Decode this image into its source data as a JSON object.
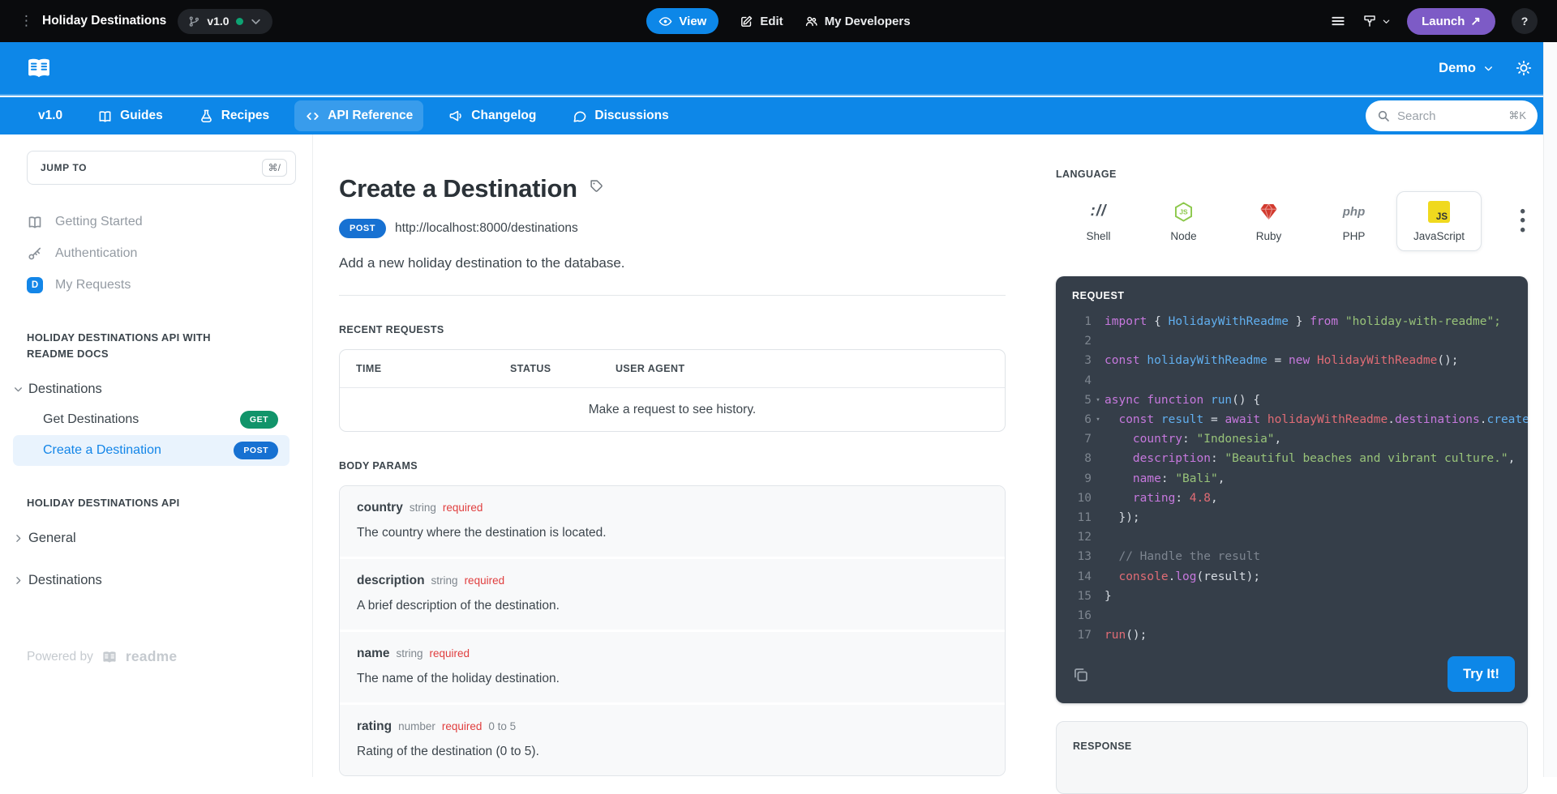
{
  "topbar": {
    "project": "Holiday Destinations",
    "version": "v1.0",
    "view": "View",
    "edit": "Edit",
    "my_developers": "My Developers",
    "launch": "Launch",
    "launch_arrow": "↗",
    "help": "?"
  },
  "header": {
    "project_selector": "Demo"
  },
  "nav": {
    "version": "v1.0",
    "items": [
      {
        "icon": "book-icon",
        "label": "Guides",
        "active": false
      },
      {
        "icon": "flask-icon",
        "label": "Recipes",
        "active": false
      },
      {
        "icon": "code-icon",
        "label": "API Reference",
        "active": true
      },
      {
        "icon": "megaphone-icon",
        "label": "Changelog",
        "active": false
      },
      {
        "icon": "chat-icon",
        "label": "Discussions",
        "active": false
      }
    ],
    "search": {
      "placeholder": "Search",
      "shortcut": "⌘K"
    }
  },
  "sidebar": {
    "jump_to_label": "JUMP TO",
    "jump_to_shortcut": "⌘/",
    "links": [
      {
        "icon": "book-icon",
        "label": "Getting Started"
      },
      {
        "icon": "key-icon",
        "label": "Authentication"
      },
      {
        "icon": "d-badge",
        "badge": "D",
        "label": "My Requests"
      }
    ],
    "sections": [
      {
        "title": "HOLIDAY DESTINATIONS API WITH README DOCS",
        "groups": [
          {
            "label": "Destinations",
            "expanded": true,
            "children": [
              {
                "label": "Get Destinations",
                "method": "GET",
                "active": false
              },
              {
                "label": "Create a Destination",
                "method": "POST",
                "active": true
              }
            ]
          }
        ]
      },
      {
        "title": "HOLIDAY DESTINATIONS API",
        "groups": [
          {
            "label": "General",
            "expanded": false,
            "children": []
          },
          {
            "label": "Destinations",
            "expanded": false,
            "children": []
          }
        ]
      }
    ],
    "powered_by": "Powered by",
    "powered_brand": "readme"
  },
  "main": {
    "title": "Create a Destination",
    "method": "POST",
    "url": "http://localhost:8000/destinations",
    "description": "Add a new holiday destination to the database.",
    "recent_requests": {
      "heading": "RECENT REQUESTS",
      "columns": [
        "TIME",
        "STATUS",
        "USER AGENT"
      ],
      "empty": "Make a request to see history."
    },
    "body_params_heading": "BODY PARAMS",
    "params": [
      {
        "name": "country",
        "type": "string",
        "flag": "required",
        "range": "",
        "desc": "The country where the destination is located."
      },
      {
        "name": "description",
        "type": "string",
        "flag": "required",
        "range": "",
        "desc": "A brief description of the destination."
      },
      {
        "name": "name",
        "type": "string",
        "flag": "required",
        "range": "",
        "desc": "The name of the holiday destination."
      },
      {
        "name": "rating",
        "type": "number",
        "flag": "required",
        "range": "0 to 5",
        "desc": "Rating of the destination (0 to 5)."
      }
    ]
  },
  "panel": {
    "language_label": "LANGUAGE",
    "languages": [
      {
        "icon": "shell-icon",
        "label": "Shell",
        "selected": false
      },
      {
        "icon": "node-icon",
        "label": "Node",
        "selected": false
      },
      {
        "icon": "ruby-icon",
        "label": "Ruby",
        "selected": false
      },
      {
        "icon": "php-icon",
        "label": "PHP",
        "selected": false
      },
      {
        "icon": "js-icon",
        "label": "JavaScript",
        "selected": true
      }
    ],
    "request_label": "REQUEST",
    "code": [
      {
        "n": 1,
        "fold": false,
        "tokens": [
          [
            "kw",
            "import"
          ],
          [
            "pl",
            " { "
          ],
          [
            "id",
            "HolidayWithReadme"
          ],
          [
            "pl",
            " } "
          ],
          [
            "kw",
            "from"
          ],
          [
            "pl",
            " "
          ],
          [
            "str",
            "\"holiday-with-readme\";"
          ]
        ]
      },
      {
        "n": 2,
        "fold": false,
        "tokens": []
      },
      {
        "n": 3,
        "fold": false,
        "tokens": [
          [
            "kw",
            "const"
          ],
          [
            "pl",
            " "
          ],
          [
            "id",
            "holidayWithReadme"
          ],
          [
            "pl",
            " = "
          ],
          [
            "kw",
            "new"
          ],
          [
            "pl",
            " "
          ],
          [
            "cls",
            "HolidayWithReadme"
          ],
          [
            "pl",
            "();"
          ]
        ]
      },
      {
        "n": 4,
        "fold": false,
        "tokens": []
      },
      {
        "n": 5,
        "fold": true,
        "tokens": [
          [
            "kw",
            "async"
          ],
          [
            "pl",
            " "
          ],
          [
            "kw",
            "function"
          ],
          [
            "pl",
            " "
          ],
          [
            "id",
            "run"
          ],
          [
            "pl",
            "() {"
          ]
        ]
      },
      {
        "n": 6,
        "fold": true,
        "tokens": [
          [
            "pl",
            "  "
          ],
          [
            "kw",
            "const"
          ],
          [
            "pl",
            " "
          ],
          [
            "id",
            "result"
          ],
          [
            "pl",
            " = "
          ],
          [
            "kw",
            "await"
          ],
          [
            "pl",
            " "
          ],
          [
            "cls",
            "holidayWithReadme"
          ],
          [
            "pl",
            "."
          ],
          [
            "kw",
            "destinations"
          ],
          [
            "pl",
            "."
          ],
          [
            "id",
            "create"
          ],
          [
            "pl",
            "({"
          ]
        ]
      },
      {
        "n": 7,
        "fold": false,
        "tokens": [
          [
            "pl",
            "    "
          ],
          [
            "kw",
            "country"
          ],
          [
            "pl",
            ": "
          ],
          [
            "str",
            "\"Indonesia\""
          ],
          [
            "pl",
            ","
          ]
        ]
      },
      {
        "n": 8,
        "fold": false,
        "tokens": [
          [
            "pl",
            "    "
          ],
          [
            "kw",
            "description"
          ],
          [
            "pl",
            ": "
          ],
          [
            "str",
            "\"Beautiful beaches and vibrant culture.\""
          ],
          [
            "pl",
            ","
          ]
        ]
      },
      {
        "n": 9,
        "fold": false,
        "tokens": [
          [
            "pl",
            "    "
          ],
          [
            "kw",
            "name"
          ],
          [
            "pl",
            ": "
          ],
          [
            "str",
            "\"Bali\""
          ],
          [
            "pl",
            ","
          ]
        ]
      },
      {
        "n": 10,
        "fold": false,
        "tokens": [
          [
            "pl",
            "    "
          ],
          [
            "kw",
            "rating"
          ],
          [
            "pl",
            ": "
          ],
          [
            "num",
            "4.8"
          ],
          [
            "pl",
            ","
          ]
        ]
      },
      {
        "n": 11,
        "fold": false,
        "tokens": [
          [
            "pl",
            "  });"
          ]
        ]
      },
      {
        "n": 12,
        "fold": false,
        "tokens": []
      },
      {
        "n": 13,
        "fold": false,
        "tokens": [
          [
            "pl",
            "  "
          ],
          [
            "com",
            "// Handle the result"
          ]
        ]
      },
      {
        "n": 14,
        "fold": false,
        "tokens": [
          [
            "pl",
            "  "
          ],
          [
            "cls",
            "console"
          ],
          [
            "pl",
            "."
          ],
          [
            "kw",
            "log"
          ],
          [
            "pl",
            "(result);"
          ]
        ]
      },
      {
        "n": 15,
        "fold": false,
        "tokens": [
          [
            "pl",
            "}"
          ]
        ]
      },
      {
        "n": 16,
        "fold": false,
        "tokens": []
      },
      {
        "n": 17,
        "fold": false,
        "tokens": [
          [
            "cls",
            "run"
          ],
          [
            "pl",
            "();"
          ]
        ]
      }
    ],
    "try_it": "Try It!",
    "response_label": "RESPONSE"
  },
  "colors": {
    "brand_blue": "#0d87e8",
    "launch_purple": "#7d5bc6",
    "get_green": "#11946a",
    "post_blue": "#1771d2",
    "required_red": "#e03e3e",
    "code_bg": "#353e49",
    "active_item_bg": "#e9f3fd",
    "js_yellow": "#f0d91e",
    "green_status_dot": "#0ea373"
  }
}
